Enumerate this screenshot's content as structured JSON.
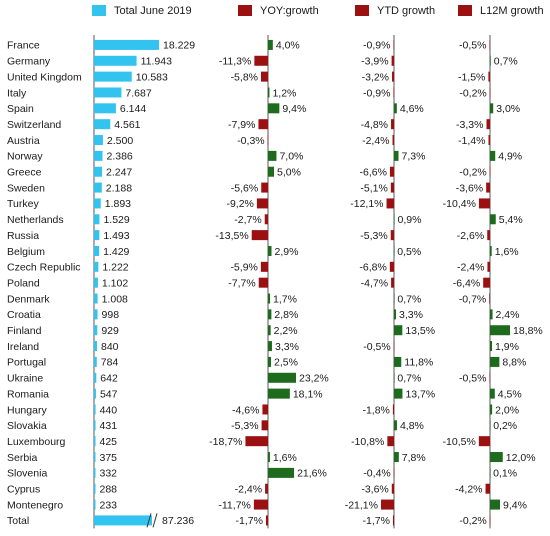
{
  "chart_data": {
    "type": "bar",
    "colors": {
      "total": "#33c3ef",
      "positive": "#1e6b1e",
      "negative": "#9b1010",
      "axis": "#5a5a5a"
    },
    "legend": [
      {
        "label": "Total  June 2019",
        "color": "#33c3ef"
      },
      {
        "label": "YOY:growth",
        "color": "#9b1010"
      },
      {
        "label": "YTD growth",
        "color": "#9b1010"
      },
      {
        "label": "L12M growth",
        "color": "#9b1010"
      }
    ],
    "categories": [
      "France",
      "Germany",
      "United Kingdom",
      "Italy",
      "Spain",
      "Switzerland",
      "Austria",
      "Norway",
      "Greece",
      "Sweden",
      "Turkey",
      "Netherlands",
      "Russia",
      "Belgium",
      "Czech Republic",
      "Poland",
      "Denmark",
      "Croatia",
      "Finland",
      "Ireland",
      "Portugal",
      "Ukraine",
      "Romania",
      "Hungary",
      "Slovakia",
      "Luxembourg",
      "Serbia",
      "Slovenia",
      "Cyprus",
      "Montenegro",
      "Total"
    ],
    "total_labels": [
      "18.229",
      "11.943",
      "10.583",
      "7.687",
      "6.144",
      "4.561",
      "2.500",
      "2.386",
      "2.247",
      "2.188",
      "1.893",
      "1.529",
      "1.493",
      "1.429",
      "1.222",
      "1.102",
      "1.008",
      "998",
      "929",
      "840",
      "784",
      "642",
      "547",
      "440",
      "431",
      "425",
      "375",
      "332",
      "288",
      "233",
      "87.236"
    ],
    "series": [
      {
        "name": "Total  June 2019",
        "values": [
          18229,
          11943,
          10583,
          7687,
          6144,
          4561,
          2500,
          2386,
          2247,
          2188,
          1893,
          1529,
          1493,
          1429,
          1222,
          1102,
          1008,
          998,
          929,
          840,
          784,
          642,
          547,
          440,
          431,
          425,
          375,
          332,
          288,
          233,
          87236
        ]
      },
      {
        "name": "YOY:growth",
        "values": [
          4.0,
          -11.3,
          -5.8,
          1.2,
          9.4,
          -7.9,
          -0.3,
          7.0,
          5.0,
          -5.6,
          -9.2,
          -2.7,
          -13.5,
          2.9,
          -5.9,
          -7.7,
          1.7,
          2.8,
          2.2,
          3.3,
          2.5,
          23.2,
          18.1,
          -4.6,
          -5.3,
          -18.7,
          1.6,
          21.6,
          -2.4,
          -11.7,
          -1.7
        ],
        "labels": [
          "4,0%",
          "-11,3%",
          "-5,8%",
          "1,2%",
          "9,4%",
          "-7,9%",
          "-0,3%",
          "7,0%",
          "5,0%",
          "-5,6%",
          "-9,2%",
          "-2,7%",
          "-13,5%",
          "2,9%",
          "-5,9%",
          "-7,7%",
          "1,7%",
          "2,8%",
          "2,2%",
          "3,3%",
          "2,5%",
          "23,2%",
          "18,1%",
          "-4,6%",
          "-5,3%",
          "-18,7%",
          "1,6%",
          "21,6%",
          "-2,4%",
          "-11,7%",
          "-1,7%"
        ]
      },
      {
        "name": "YTD growth",
        "values": [
          -0.9,
          -3.9,
          -3.2,
          -0.9,
          4.6,
          -4.8,
          -2.4,
          7.3,
          -6.6,
          -5.1,
          -12.1,
          0.9,
          -5.3,
          0.5,
          -6.8,
          -4.7,
          0.7,
          3.3,
          13.5,
          -0.5,
          11.8,
          0.7,
          13.7,
          -1.8,
          4.8,
          -10.8,
          7.8,
          -0.4,
          -3.6,
          -21.1,
          -1.7
        ],
        "labels": [
          "-0,9%",
          "-3,9%",
          "-3,2%",
          "-0,9%",
          "4,6%",
          "-4,8%",
          "-2,4%",
          "7,3%",
          "-6,6%",
          "-5,1%",
          "-12,1%",
          "0,9%",
          "-5,3%",
          "0,5%",
          "-6,8%",
          "-4,7%",
          "0,7%",
          "3,3%",
          "13,5%",
          "-0,5%",
          "11,8%",
          "0,7%",
          "13,7%",
          "-1,8%",
          "4,8%",
          "-10,8%",
          "7,8%",
          "-0,4%",
          "-3,6%",
          "-21,1%",
          "-1,7%"
        ]
      },
      {
        "name": "L12M growth",
        "values": [
          -0.5,
          0.7,
          -1.5,
          -0.2,
          3.0,
          -3.3,
          -1.4,
          4.9,
          -0.2,
          -3.6,
          -10.4,
          5.4,
          -2.6,
          1.6,
          -2.4,
          -6.4,
          -0.7,
          2.4,
          18.8,
          1.9,
          8.8,
          -0.5,
          4.5,
          2.0,
          0.2,
          -10.5,
          12.0,
          0.1,
          -4.2,
          9.4,
          -0.2
        ],
        "labels": [
          "-0,5%",
          "0,7%",
          "-1,5%",
          "-0,2%",
          "3,0%",
          "-3,3%",
          "-1,4%",
          "4,9%",
          "-0,2%",
          "-3,6%",
          "-10,4%",
          "5,4%",
          "-2,6%",
          "1,6%",
          "-2,4%",
          "-6,4%",
          "-0,7%",
          "2,4%",
          "18,8%",
          "1,9%",
          "8,8%",
          "-0,5%",
          "4,5%",
          "2,0%",
          "0,2%",
          "-10,5%",
          "12,0%",
          "0,1%",
          "-4,2%",
          "9,4%",
          "-0,2%"
        ]
      }
    ]
  }
}
